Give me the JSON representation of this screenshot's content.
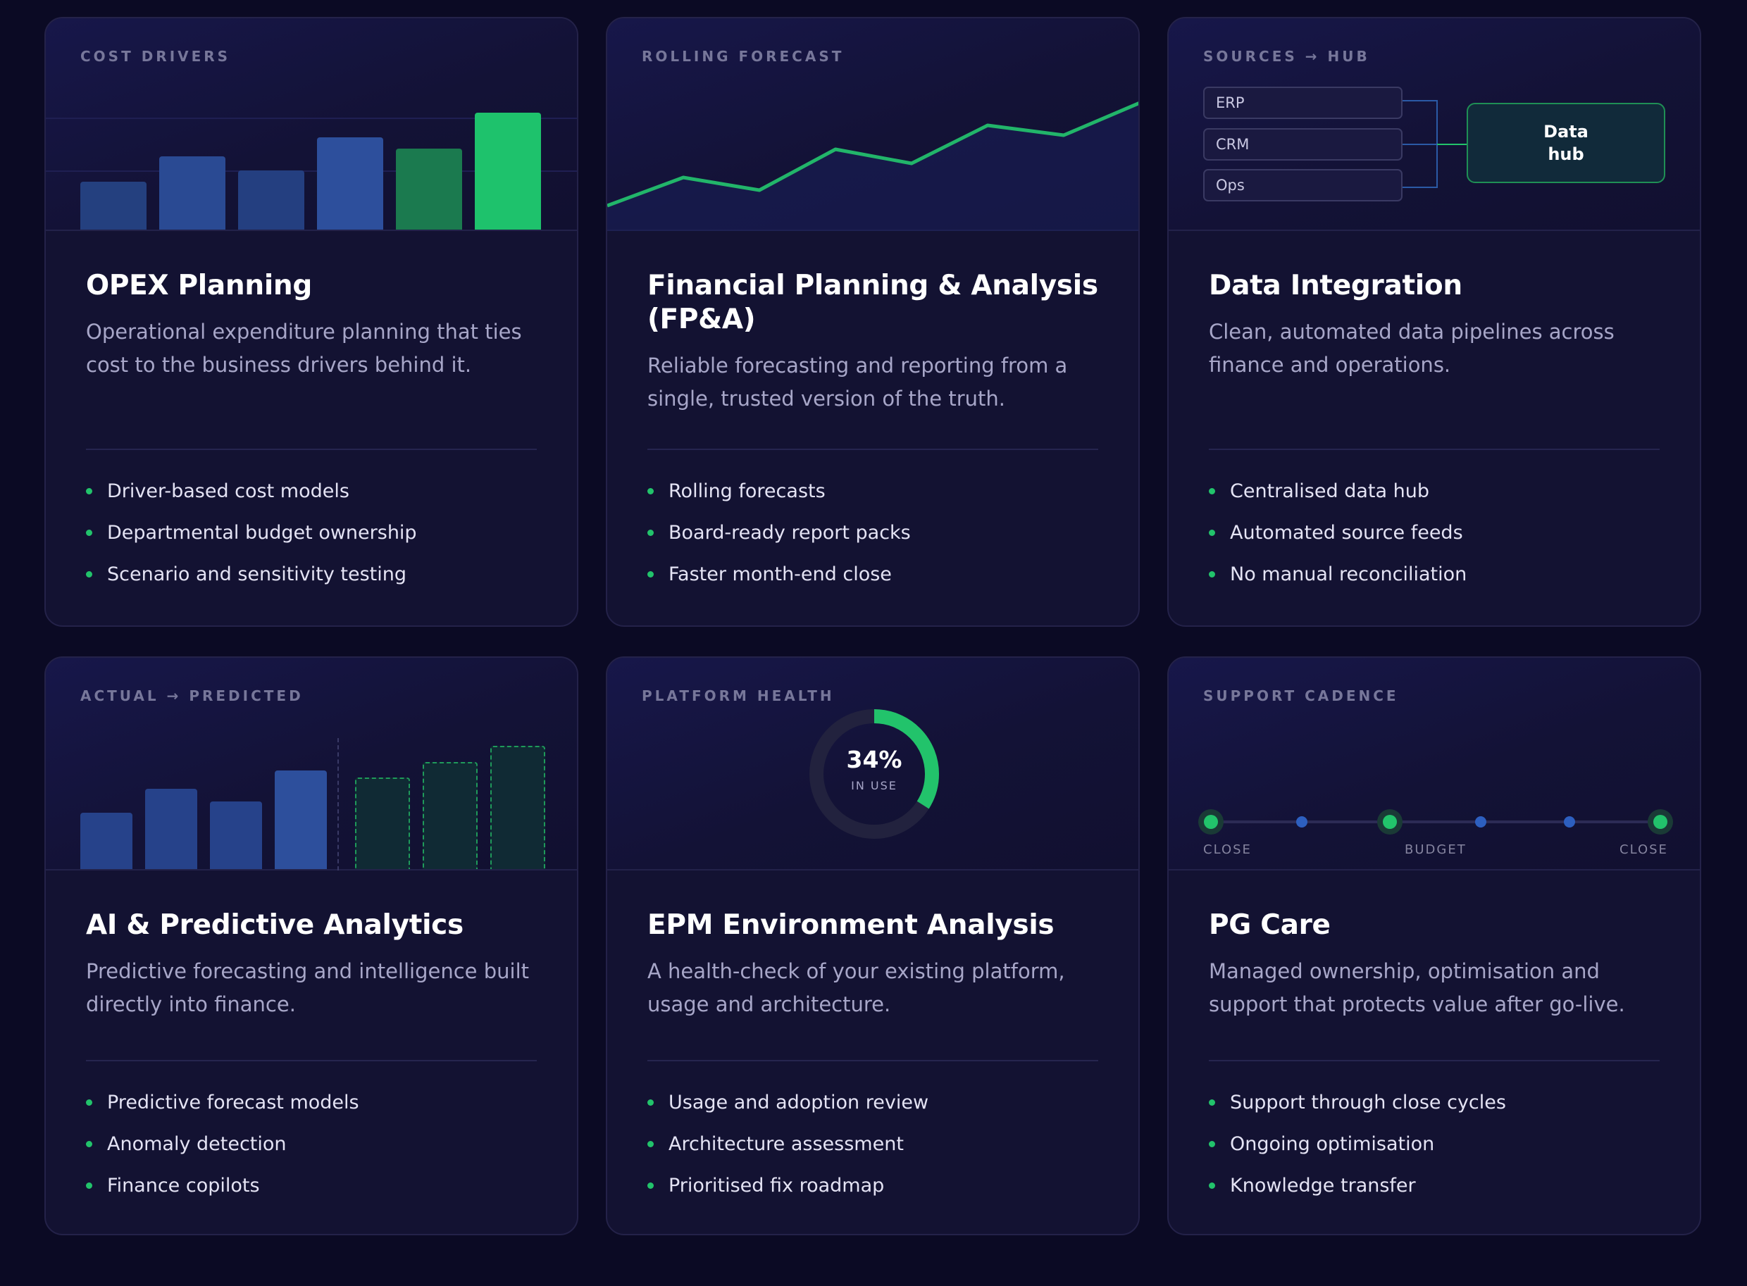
{
  "cards": [
    {
      "eyebrow": "COST DRIVERS",
      "title": "OPEX Planning",
      "description": "Operational expenditure planning that ties cost to the business drivers behind it.",
      "features": [
        "Driver-based cost models",
        "Departmental budget ownership",
        "Scenario and sensitivity testing"
      ],
      "chart_data": {
        "type": "bar",
        "values": [
          68,
          104,
          84,
          131,
          115,
          166
        ]
      }
    },
    {
      "eyebrow": "ROLLING FORECAST",
      "title": "Financial Planning & Analysis (FP&A)",
      "description": "Reliable forecasting and reporting from a single, trusted version of the truth.",
      "features": [
        "Rolling forecasts",
        "Board-ready report packs",
        "Faster month-end close"
      ],
      "chart_data": {
        "type": "line",
        "values": [
          0,
          40,
          22,
          80,
          60,
          114,
          100,
          146
        ]
      }
    },
    {
      "eyebrow": "SOURCES → HUB",
      "title": "Data Integration",
      "description": "Clean, automated data pipelines across finance and operations.",
      "features": [
        "Centralised data hub",
        "Automated source feeds",
        "No manual reconciliation"
      ],
      "diagram": {
        "sources": [
          "ERP",
          "CRM",
          "Ops"
        ],
        "hub": "Data hub"
      }
    },
    {
      "eyebrow": "ACTUAL → PREDICTED",
      "title": "AI & Predictive Analytics",
      "description": "Predictive forecasting and intelligence built directly into finance.",
      "features": [
        "Predictive forecast models",
        "Anomaly detection",
        "Finance copilots"
      ],
      "chart_data": {
        "type": "bar",
        "actual": [
          80,
          114,
          96,
          140
        ],
        "predicted": [
          130,
          152,
          175
        ]
      }
    },
    {
      "eyebrow": "PLATFORM HEALTH",
      "title": "EPM Environment Analysis",
      "description": "A health-check of your existing platform, usage and architecture.",
      "features": [
        "Usage and adoption review",
        "Architecture assessment",
        "Prioritised fix roadmap"
      ],
      "gauge": {
        "value_label": "34%",
        "caption": "IN USE",
        "fraction": 0.34
      }
    },
    {
      "eyebrow": "SUPPORT CADENCE",
      "title": "PG Care",
      "description": "Managed ownership, optimisation and support that protects value after go-live.",
      "features": [
        "Support through close cycles",
        "Ongoing optimisation",
        "Knowledge transfer"
      ],
      "timeline": {
        "labels": [
          "CLOSE",
          "BUDGET",
          "CLOSE"
        ]
      }
    }
  ],
  "colors": {
    "green": "#22c36b",
    "blue": "#2c4a91",
    "dark_green": "#1b7a4f"
  }
}
